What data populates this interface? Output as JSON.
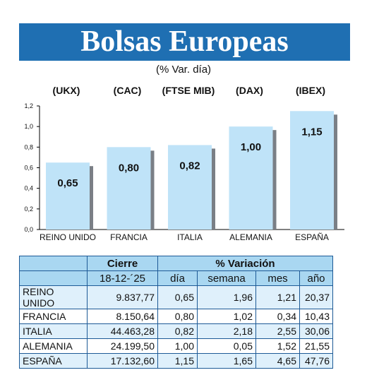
{
  "title": "Bolsas Europeas",
  "subtitle": "(% Var. día)",
  "chart_data": {
    "type": "bar",
    "title": "Bolsas Europeas",
    "subtitle": "(% Var. día)",
    "codes": [
      "(UKX)",
      "(CAC)",
      "(FTSE MIB)",
      "(DAX)",
      "(IBEX)"
    ],
    "categories": [
      "REINO UNIDO",
      "FRANCIA",
      "ITALIA",
      "ALEMANIA",
      "ESPAÑA"
    ],
    "values": [
      0.65,
      0.8,
      0.82,
      1.0,
      1.15
    ],
    "value_labels": [
      "0,65",
      "0,80",
      "0,82",
      "1,00",
      "1,15"
    ],
    "ylim": [
      0,
      1.2
    ],
    "yticks": [
      "0,0",
      "0,2",
      "0,4",
      "0,6",
      "0,8",
      "1,0",
      "1,2"
    ],
    "grid": false,
    "bar_color": "#bfe3f8"
  },
  "table": {
    "header_cierre": "Cierre",
    "header_variacion": "% Variación",
    "date": "18-12-´25",
    "columns": [
      "día",
      "semana",
      "mes",
      "año"
    ],
    "rows": [
      [
        "REINO UNIDO",
        "9.837,77",
        "0,65",
        "1,96",
        "1,21",
        "20,37"
      ],
      [
        "FRANCIA",
        "8.150,64",
        "0,80",
        "1,02",
        "0,34",
        "10,43"
      ],
      [
        "ITALIA",
        "44.463,28",
        "0,82",
        "2,18",
        "2,55",
        "30,06"
      ],
      [
        "ALEMANIA",
        "24.199,50",
        "1,00",
        "0,05",
        "1,52",
        "21,55"
      ],
      [
        "ESPAÑA",
        "17.132,60",
        "1,15",
        "1,65",
        "4,65",
        "47,76"
      ]
    ]
  },
  "colors": {
    "banner": "#1f6fb2",
    "header_fill": "#a9d7f1",
    "row_fill": "#dff0fb",
    "border": "#1d5a96"
  }
}
